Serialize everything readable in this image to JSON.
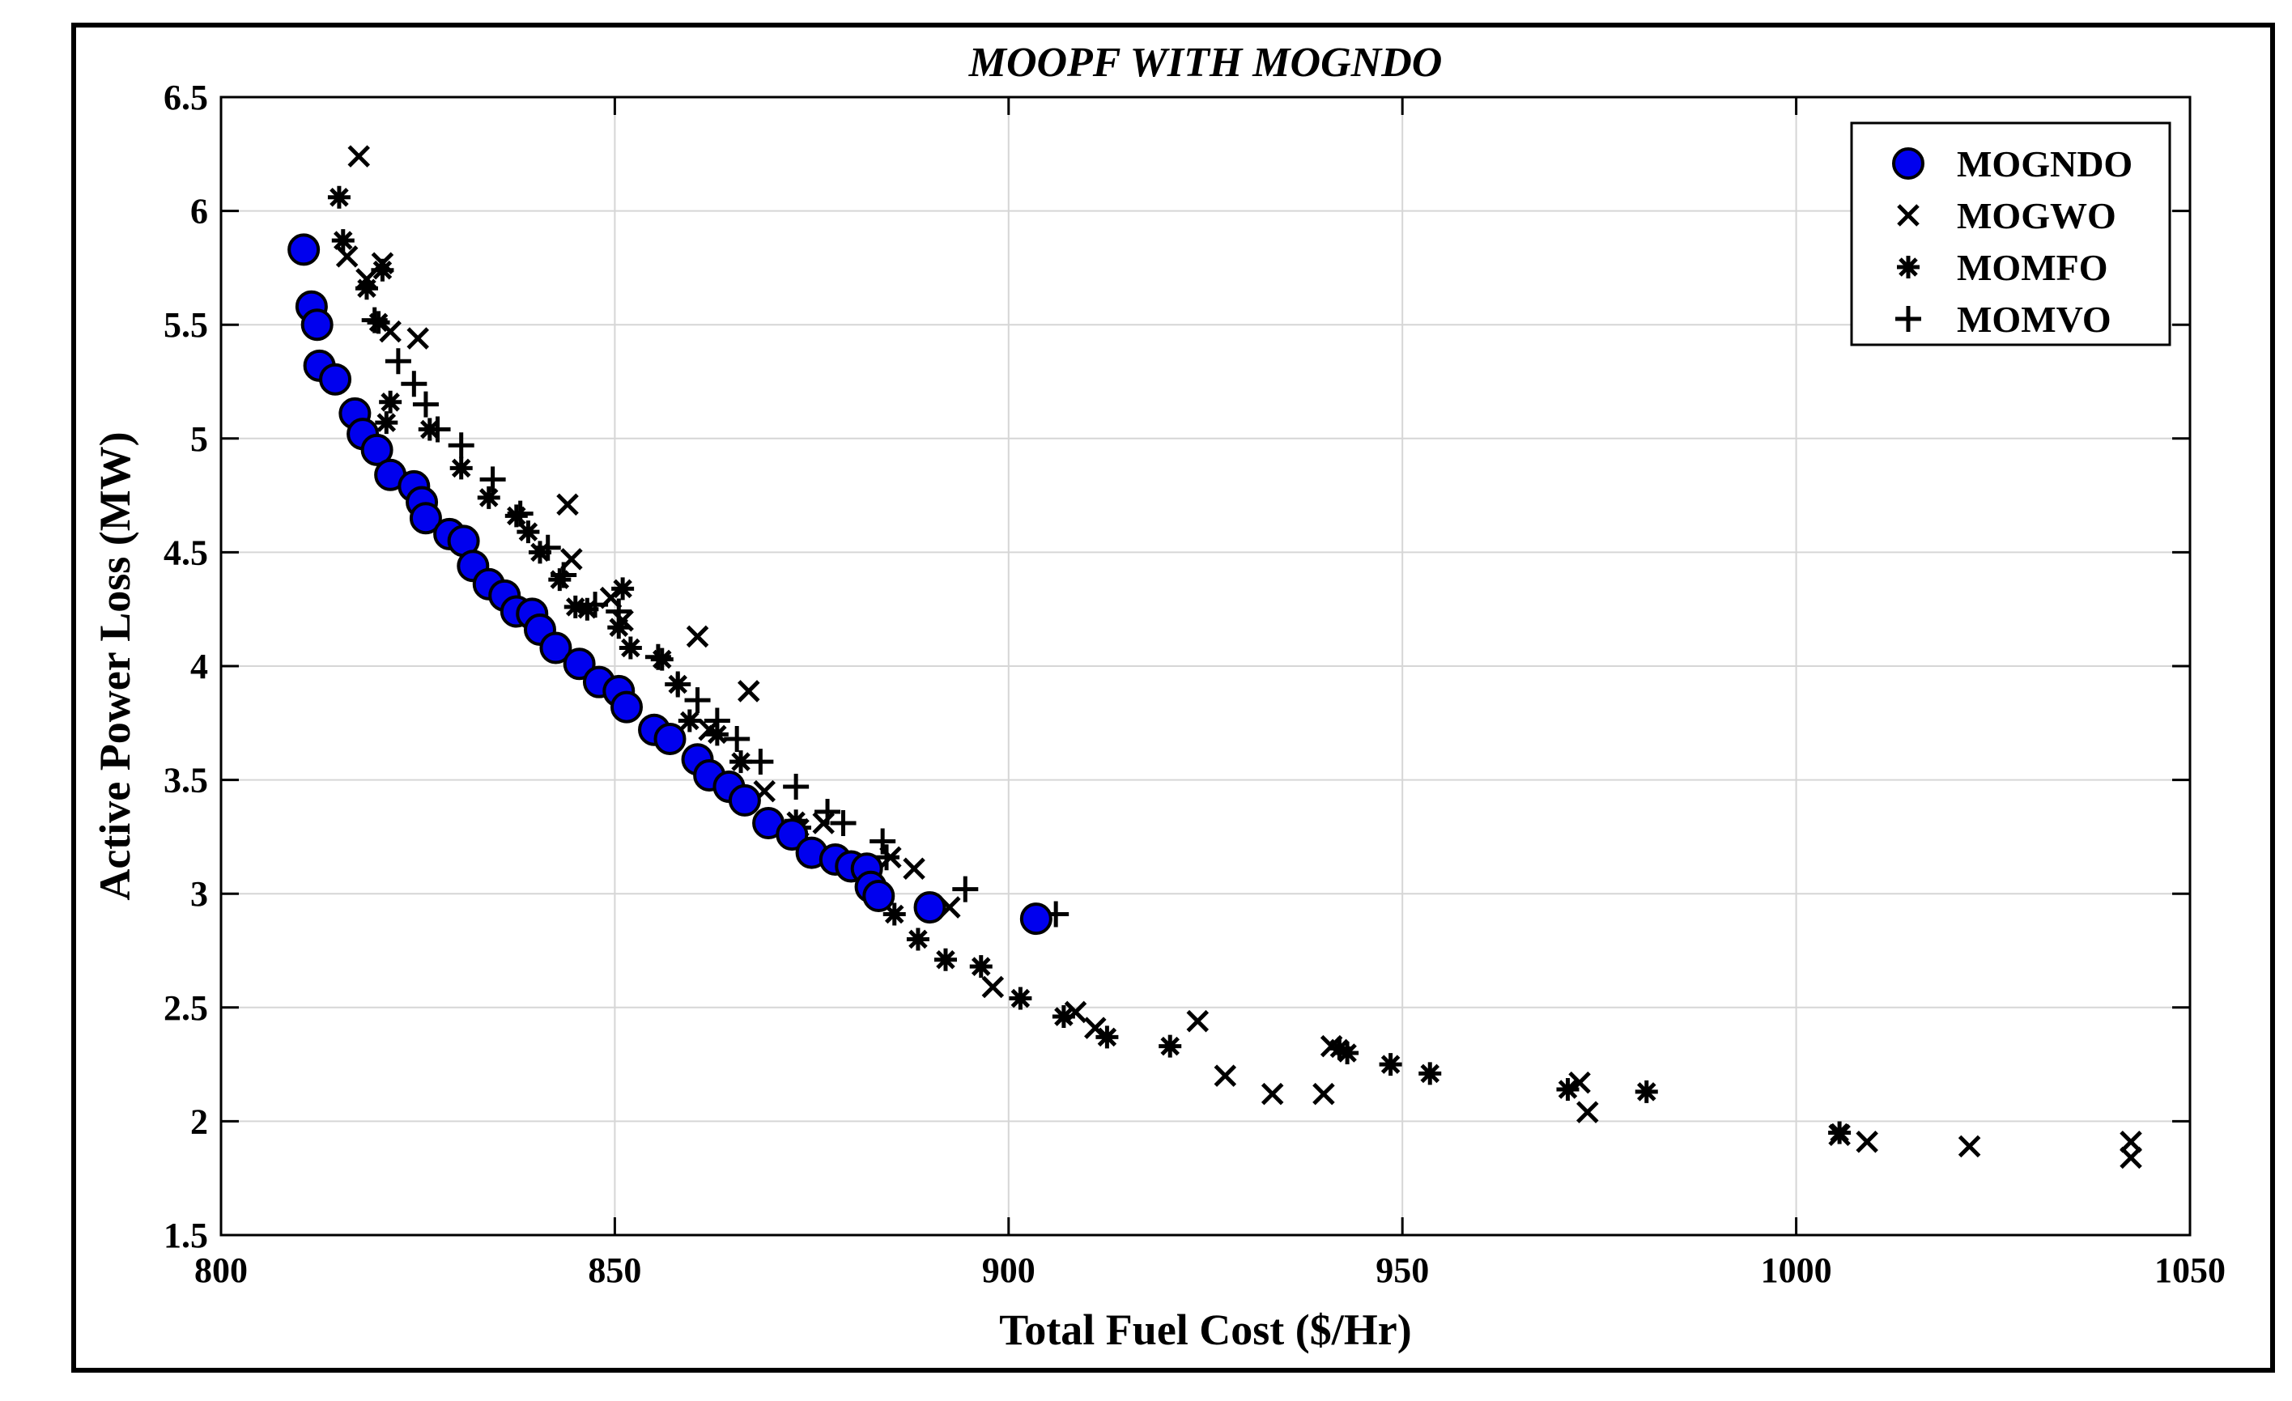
{
  "chart_data": {
    "type": "scatter",
    "title": "MOOPF WITH MOGNDO",
    "xlabel": "Total Fuel Cost ($/Hr)",
    "ylabel": "Active Power Loss (MW)",
    "xlim": [
      800,
      1050
    ],
    "ylim": [
      1.5,
      6.5
    ],
    "xticks": [
      800,
      850,
      900,
      950,
      1000,
      1050
    ],
    "yticks": [
      1.5,
      2,
      2.5,
      3,
      3.5,
      4,
      4.5,
      5,
      5.5,
      6,
      6.5
    ],
    "xtick_labels": [
      "800",
      "850",
      "900",
      "950",
      "1000",
      "1050"
    ],
    "ytick_labels": [
      "1.5",
      "2",
      "2.5",
      "3",
      "3.5",
      "4",
      "4.5",
      "5",
      "5.5",
      "6",
      "6.5"
    ],
    "grid": true,
    "legend_position": "top-right",
    "series": [
      {
        "name": "MOGNDO",
        "marker": "circle",
        "color": "#0000ee",
        "points": [
          [
            810.5,
            5.83
          ],
          [
            811.5,
            5.58
          ],
          [
            812.2,
            5.5
          ],
          [
            812.5,
            5.32
          ],
          [
            814.5,
            5.26
          ],
          [
            817.0,
            5.11
          ],
          [
            818.0,
            5.02
          ],
          [
            819.8,
            4.95
          ],
          [
            821.5,
            4.84
          ],
          [
            824.5,
            4.79
          ],
          [
            825.5,
            4.72
          ],
          [
            826.0,
            4.65
          ],
          [
            829.0,
            4.58
          ],
          [
            830.8,
            4.55
          ],
          [
            832.0,
            4.44
          ],
          [
            834.0,
            4.36
          ],
          [
            836.0,
            4.31
          ],
          [
            837.5,
            4.24
          ],
          [
            839.5,
            4.23
          ],
          [
            840.5,
            4.16
          ],
          [
            842.5,
            4.08
          ],
          [
            845.5,
            4.01
          ],
          [
            848.0,
            3.93
          ],
          [
            850.5,
            3.89
          ],
          [
            851.5,
            3.82
          ],
          [
            855.0,
            3.72
          ],
          [
            857.0,
            3.68
          ],
          [
            860.5,
            3.59
          ],
          [
            862.0,
            3.52
          ],
          [
            864.5,
            3.47
          ],
          [
            866.5,
            3.41
          ],
          [
            869.5,
            3.31
          ],
          [
            872.5,
            3.26
          ],
          [
            875.0,
            3.18
          ],
          [
            878.0,
            3.15
          ],
          [
            880.0,
            3.12
          ],
          [
            882.0,
            3.11
          ],
          [
            882.5,
            3.03
          ],
          [
            883.5,
            2.99
          ],
          [
            890.0,
            2.94
          ],
          [
            903.5,
            2.89
          ]
        ]
      },
      {
        "name": "MOGWO",
        "marker": "x",
        "color": "#000000",
        "points": [
          [
            817.5,
            6.24
          ],
          [
            816.0,
            5.8
          ],
          [
            818.5,
            5.7
          ],
          [
            820.5,
            5.77
          ],
          [
            821.5,
            5.47
          ],
          [
            825.0,
            5.44
          ],
          [
            844.0,
            4.71
          ],
          [
            844.5,
            4.47
          ],
          [
            849.5,
            4.3
          ],
          [
            851.0,
            4.2
          ],
          [
            860.5,
            4.13
          ],
          [
            867.0,
            3.89
          ],
          [
            862.0,
            3.72
          ],
          [
            869.0,
            3.45
          ],
          [
            876.5,
            3.31
          ],
          [
            885.0,
            3.16
          ],
          [
            888.0,
            3.11
          ],
          [
            892.5,
            2.94
          ],
          [
            898.0,
            2.59
          ],
          [
            908.5,
            2.48
          ],
          [
            911.0,
            2.41
          ],
          [
            924.0,
            2.44
          ],
          [
            927.5,
            2.2
          ],
          [
            933.5,
            2.12
          ],
          [
            940.0,
            2.12
          ],
          [
            941.0,
            2.33
          ],
          [
            972.5,
            2.17
          ],
          [
            973.5,
            2.04
          ],
          [
            1005.5,
            1.94
          ],
          [
            1009.0,
            1.91
          ],
          [
            1022.0,
            1.89
          ],
          [
            1042.5,
            1.91
          ],
          [
            1042.5,
            1.84
          ]
        ]
      },
      {
        "name": "MOMFO",
        "marker": "asterisk",
        "color": "#000000",
        "points": [
          [
            815.0,
            6.06
          ],
          [
            815.5,
            5.87
          ],
          [
            818.5,
            5.66
          ],
          [
            820.5,
            5.74
          ],
          [
            820.0,
            5.51
          ],
          [
            821.5,
            5.16
          ],
          [
            821.0,
            5.07
          ],
          [
            826.5,
            5.04
          ],
          [
            830.5,
            4.87
          ],
          [
            834.0,
            4.74
          ],
          [
            837.5,
            4.66
          ],
          [
            839.0,
            4.59
          ],
          [
            840.5,
            4.5
          ],
          [
            843.0,
            4.38
          ],
          [
            845.0,
            4.26
          ],
          [
            846.5,
            4.25
          ],
          [
            850.5,
            4.17
          ],
          [
            851.0,
            4.34
          ],
          [
            852.0,
            4.08
          ],
          [
            856.0,
            4.03
          ],
          [
            858.0,
            3.92
          ],
          [
            859.5,
            3.76
          ],
          [
            863.0,
            3.7
          ],
          [
            866.0,
            3.58
          ],
          [
            873.0,
            3.32
          ],
          [
            873.5,
            3.29
          ],
          [
            879.0,
            3.14
          ],
          [
            885.5,
            2.91
          ],
          [
            888.5,
            2.8
          ],
          [
            892.0,
            2.71
          ],
          [
            896.5,
            2.68
          ],
          [
            901.5,
            2.54
          ],
          [
            907.0,
            2.46
          ],
          [
            912.5,
            2.37
          ],
          [
            920.5,
            2.33
          ],
          [
            942.0,
            2.32
          ],
          [
            943.0,
            2.3
          ],
          [
            948.5,
            2.25
          ],
          [
            953.5,
            2.21
          ],
          [
            971.0,
            2.14
          ],
          [
            981.0,
            2.13
          ],
          [
            1005.5,
            1.95
          ]
        ]
      },
      {
        "name": "MOMVO",
        "marker": "plus",
        "color": "#000000",
        "points": [
          [
            819.5,
            5.52
          ],
          [
            822.5,
            5.34
          ],
          [
            824.5,
            5.24
          ],
          [
            826.0,
            5.15
          ],
          [
            827.5,
            5.04
          ],
          [
            830.5,
            4.97
          ],
          [
            834.5,
            4.82
          ],
          [
            838.0,
            4.67
          ],
          [
            841.5,
            4.52
          ],
          [
            843.5,
            4.4
          ],
          [
            847.5,
            4.27
          ],
          [
            850.5,
            4.24
          ],
          [
            855.5,
            4.04
          ],
          [
            858.0,
            3.92
          ],
          [
            860.5,
            3.85
          ],
          [
            863.0,
            3.76
          ],
          [
            865.5,
            3.68
          ],
          [
            868.5,
            3.58
          ],
          [
            873.0,
            3.47
          ],
          [
            877.0,
            3.36
          ],
          [
            879.0,
            3.31
          ],
          [
            884.0,
            3.23
          ],
          [
            884.5,
            3.16
          ],
          [
            894.5,
            3.02
          ],
          [
            906.0,
            2.91
          ]
        ]
      }
    ]
  }
}
